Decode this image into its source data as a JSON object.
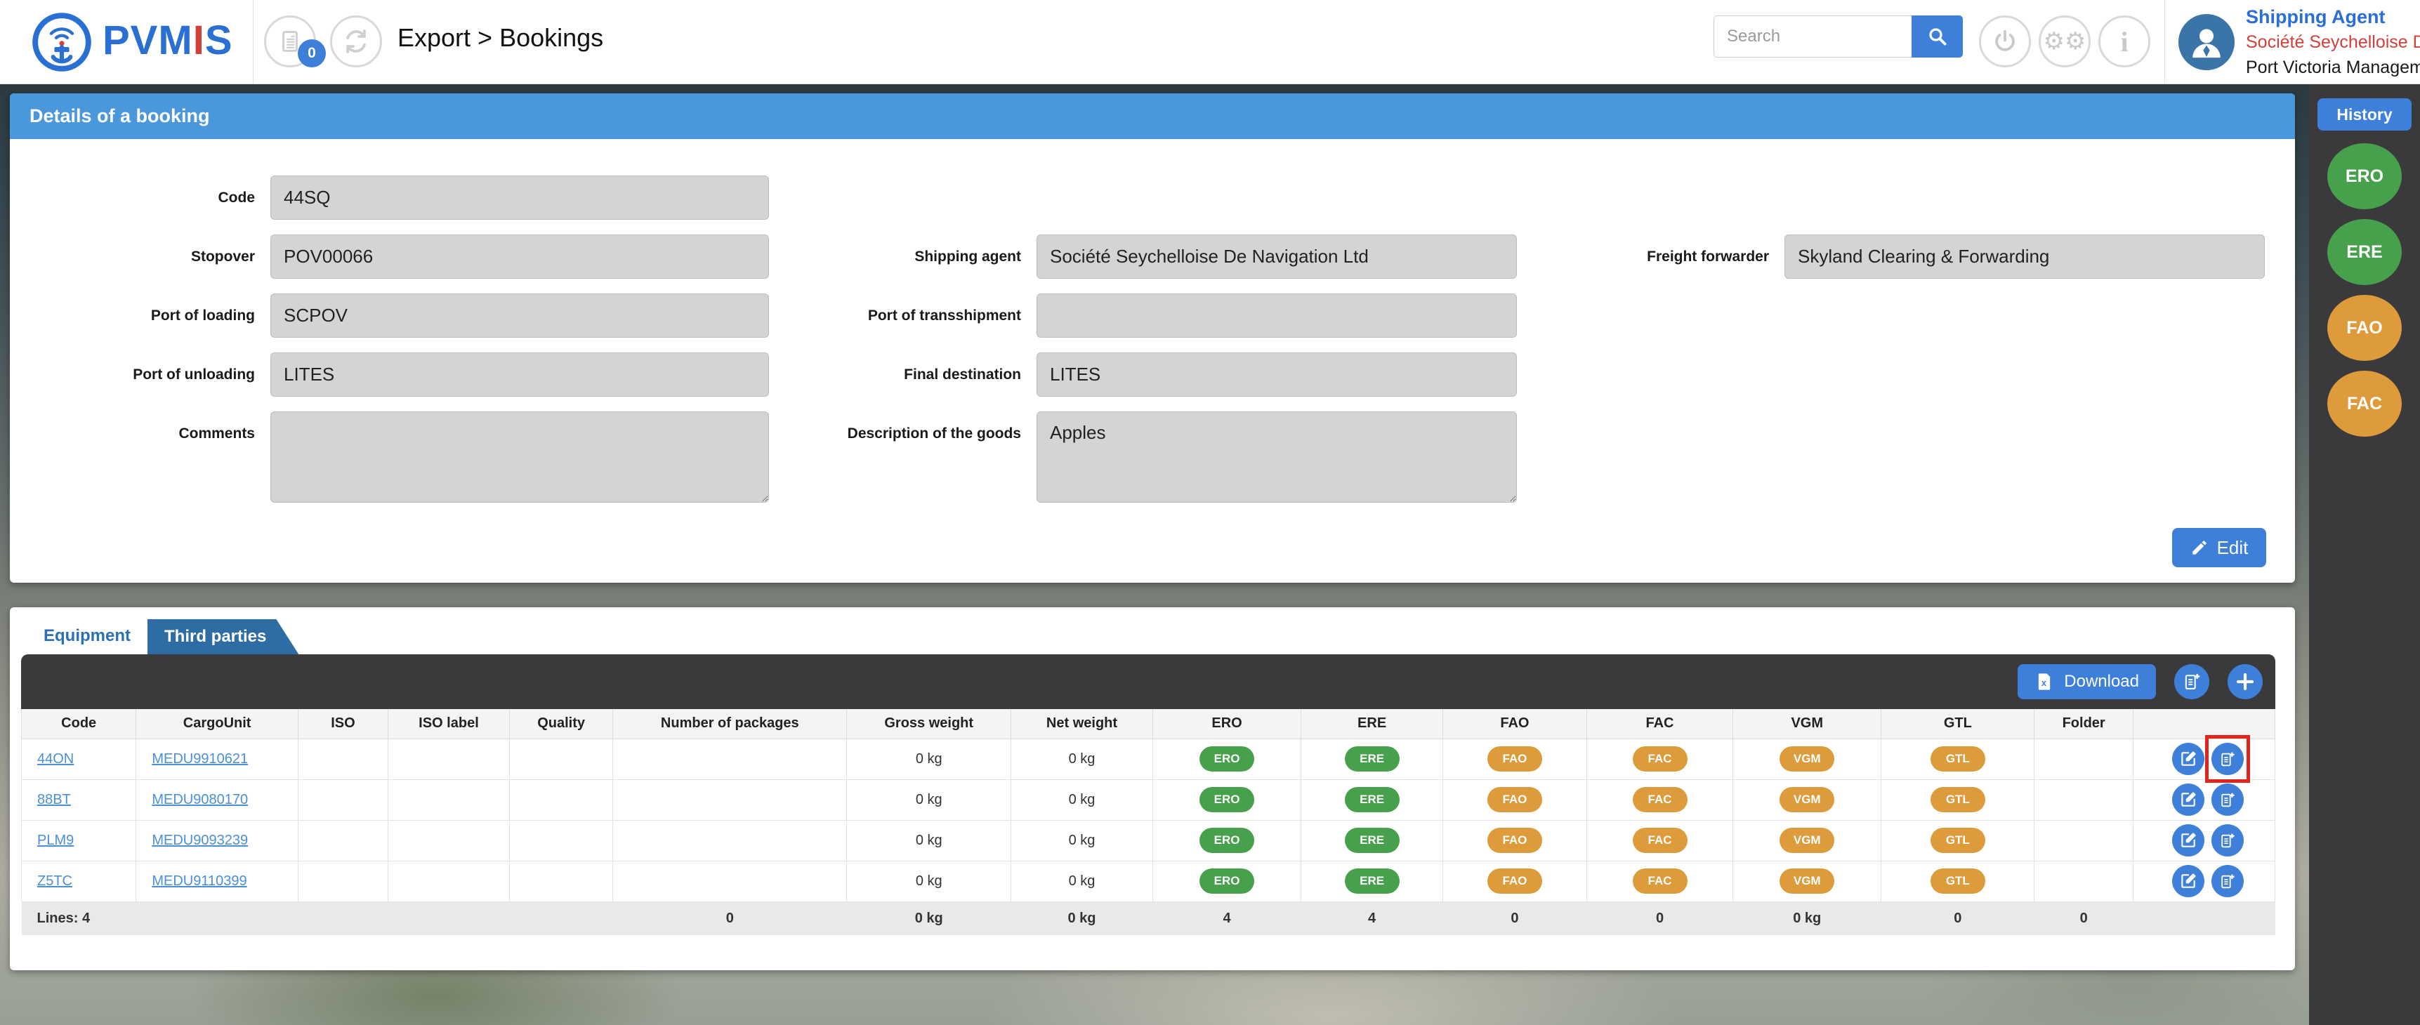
{
  "header": {
    "brand": {
      "part1": "PVM",
      "accent": "I",
      "part2": "S"
    },
    "notifications_count": "0",
    "breadcrumb": "Export > Bookings",
    "search_placeholder": "Search",
    "user": {
      "role": "Shipping Agent",
      "company": "Société Seychelloise De",
      "org": "Port Victoria Managem"
    }
  },
  "booking": {
    "title": "Details of a booking",
    "edit_label": "Edit",
    "fields": {
      "code": {
        "label": "Code",
        "value": "44SQ"
      },
      "stopover": {
        "label": "Stopover",
        "value": "POV00066"
      },
      "port_of_loading": {
        "label": "Port of loading",
        "value": "SCPOV"
      },
      "port_of_unloading": {
        "label": "Port of unloading",
        "value": "LITES"
      },
      "comments": {
        "label": "Comments",
        "value": ""
      },
      "shipping_agent": {
        "label": "Shipping agent",
        "value": "Société Seychelloise De Navigation Ltd"
      },
      "port_of_transshipment": {
        "label": "Port of transshipment",
        "value": ""
      },
      "final_destination": {
        "label": "Final destination",
        "value": "LITES"
      },
      "description": {
        "label": "Description of the goods",
        "value": "Apples"
      },
      "freight_forwarder": {
        "label": "Freight forwarder",
        "value": "Skyland Clearing & Forwarding"
      }
    }
  },
  "tabs": {
    "equipment": "Equipment",
    "third_parties": "Third parties"
  },
  "toolbar": {
    "download_label": "Download"
  },
  "table": {
    "columns": [
      {
        "key": "code",
        "label": "Code",
        "w": "5.1%"
      },
      {
        "key": "cargo_unit",
        "label": "CargoUnit",
        "w": "7.2%"
      },
      {
        "key": "iso",
        "label": "ISO",
        "w": "4.0%"
      },
      {
        "key": "iso_label",
        "label": "ISO label",
        "w": "5.4%"
      },
      {
        "key": "quality",
        "label": "Quality",
        "w": "4.6%"
      },
      {
        "key": "packages",
        "label": "Number of packages",
        "w": "10.4%"
      },
      {
        "key": "gross",
        "label": "Gross weight",
        "w": "7.3%"
      },
      {
        "key": "net",
        "label": "Net weight",
        "w": "6.3%"
      },
      {
        "key": "ero",
        "label": "ERO",
        "w": "6.6%"
      },
      {
        "key": "ere",
        "label": "ERE",
        "w": "6.3%"
      },
      {
        "key": "fao",
        "label": "FAO",
        "w": "6.4%"
      },
      {
        "key": "fac",
        "label": "FAC",
        "w": "6.5%"
      },
      {
        "key": "vgm",
        "label": "VGM",
        "w": "6.6%"
      },
      {
        "key": "gtl",
        "label": "GTL",
        "w": "6.8%"
      },
      {
        "key": "folder",
        "label": "Folder",
        "w": "4.4%"
      },
      {
        "key": "actions",
        "label": "",
        "w": "6.3%"
      }
    ],
    "badge_keys": [
      "ero",
      "ere",
      "fao",
      "fac",
      "vgm",
      "gtl"
    ],
    "badges": {
      "ero": {
        "label": "ERO",
        "color": "#47a04b"
      },
      "ere": {
        "label": "ERE",
        "color": "#47a04b"
      },
      "fao": {
        "label": "FAO",
        "color": "#de9b3b"
      },
      "fac": {
        "label": "FAC",
        "color": "#de9b3b"
      },
      "vgm": {
        "label": "VGM",
        "color": "#de9b3b"
      },
      "gtl": {
        "label": "GTL",
        "color": "#de9b3b"
      }
    },
    "rows": [
      {
        "code": "44ON",
        "cargo_unit": "MEDU9910621",
        "iso": "",
        "iso_label": "",
        "quality": "",
        "packages": "",
        "gross": "0 kg",
        "net": "0 kg",
        "folder": ""
      },
      {
        "code": "88BT",
        "cargo_unit": "MEDU9080170",
        "iso": "",
        "iso_label": "",
        "quality": "",
        "packages": "",
        "gross": "0 kg",
        "net": "0 kg",
        "folder": ""
      },
      {
        "code": "PLM9",
        "cargo_unit": "MEDU9093239",
        "iso": "",
        "iso_label": "",
        "quality": "",
        "packages": "",
        "gross": "0 kg",
        "net": "0 kg",
        "folder": ""
      },
      {
        "code": "Z5TC",
        "cargo_unit": "MEDU9110399",
        "iso": "",
        "iso_label": "",
        "quality": "",
        "packages": "",
        "gross": "0 kg",
        "net": "0 kg",
        "folder": ""
      }
    ],
    "annotation": {
      "row": 0,
      "action": "add-document",
      "color": "#e0261c"
    },
    "footer": {
      "code": "Lines: 4",
      "packages": "0",
      "gross": "0 kg",
      "net": "0 kg",
      "ero": "4",
      "ere": "4",
      "fao": "0",
      "fac": "0",
      "vgm": "0 kg",
      "gtl": "0",
      "folder": "0"
    }
  },
  "sidebar": {
    "history_label": "History",
    "badges": [
      {
        "label": "ERO",
        "color": "#47a04b"
      },
      {
        "label": "ERE",
        "color": "#47a04b"
      },
      {
        "label": "FAO",
        "color": "#de9b3b"
      },
      {
        "label": "FAC",
        "color": "#de9b3b"
      }
    ]
  },
  "colors": {
    "accent_blue": "#3d7fd9",
    "panel_header_blue": "#4a98db",
    "tab_blue": "#2e6da4",
    "green": "#47a04b",
    "orange": "#de9b3b",
    "toolbar_dark": "#3a3a3d",
    "annotation_red": "#e0261c",
    "link_blue": "#4a90d9",
    "brand_blue": "#2a6fd4",
    "brand_red": "#d43f3a"
  }
}
